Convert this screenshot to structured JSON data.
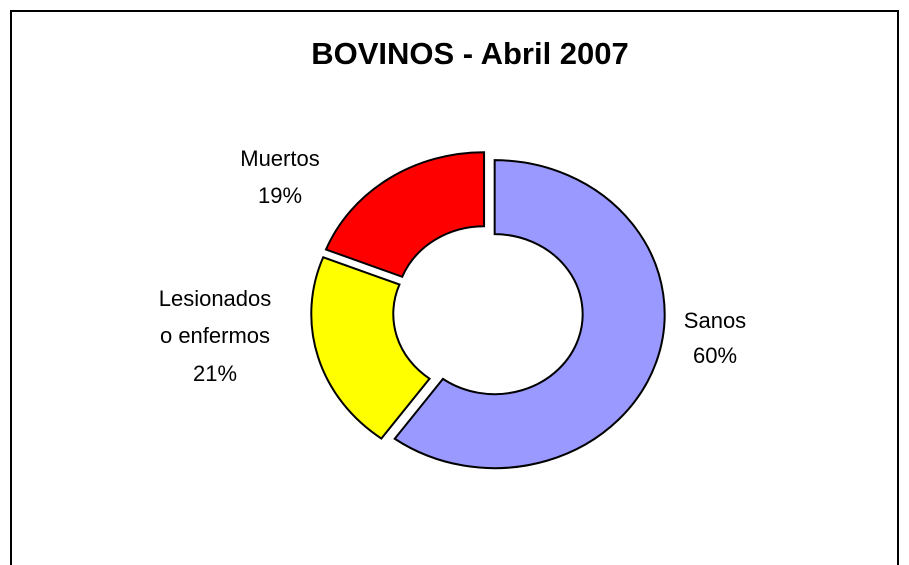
{
  "chart_data": {
    "type": "donut",
    "title": "BOVINOS - Abril 2007",
    "categories": [
      "Sanos",
      "Lesionados o enfermos",
      "Muertos"
    ],
    "values": [
      60,
      21,
      19
    ],
    "value_labels": [
      "60%",
      "21%",
      "19%"
    ],
    "colors": [
      "#9999ff",
      "#ffff00",
      "#ff0000"
    ]
  }
}
